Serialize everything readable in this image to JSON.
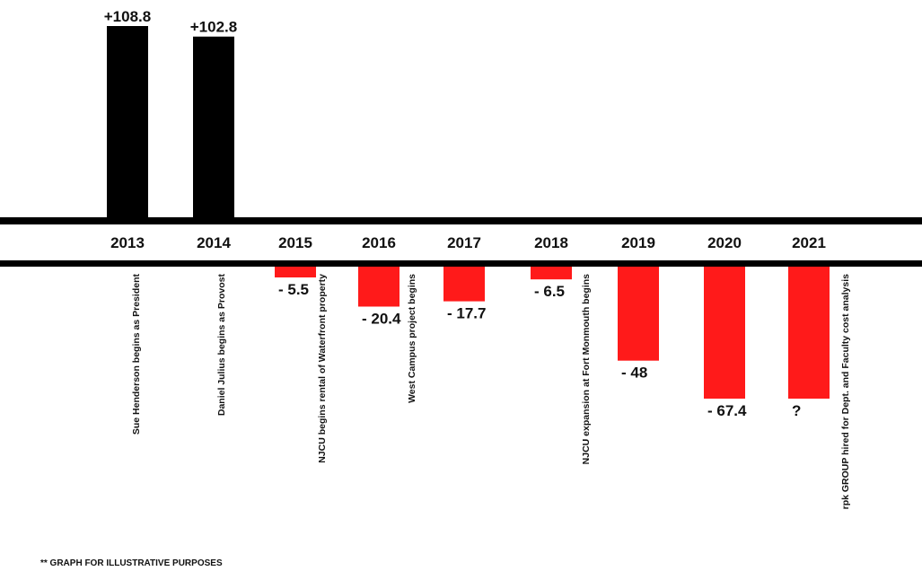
{
  "chart_data": {
    "type": "bar",
    "categories": [
      "2013",
      "2014",
      "2015",
      "2016",
      "2017",
      "2018",
      "2019",
      "2020",
      "2021"
    ],
    "values": [
      108.8,
      102.8,
      -5.5,
      -20.4,
      -17.7,
      -6.5,
      -48,
      -67.4,
      null
    ],
    "value_labels": [
      "+108.8",
      "+102.8",
      "- 5.5",
      "- 20.4",
      "- 17.7",
      "- 6.5",
      "- 48",
      "- 67.4",
      "?"
    ],
    "annotations": [
      {
        "category": "2013",
        "text": "Sue Henderson begins as President"
      },
      {
        "category": "2014",
        "text": "Daniel Julius begins as Provost"
      },
      {
        "category": "2015",
        "text": "NJCU begins rental of Waterfront property"
      },
      {
        "category": "2016",
        "text": "West Campus project begins"
      },
      {
        "category": "2018",
        "text": "NJCU expansion at Fort Monmouth begins"
      },
      {
        "category": "2021",
        "text": "rpk GROUP hired for Dept. and Faculty cost analysis"
      }
    ],
    "footnote": "** GRAPH FOR ILLUSTRATIVE PURPOSES",
    "title": "",
    "xlabel": "",
    "ylabel": "",
    "colors": {
      "positive": "#000000",
      "negative": "#ff1a1a"
    },
    "grid": false,
    "legend": "none"
  }
}
